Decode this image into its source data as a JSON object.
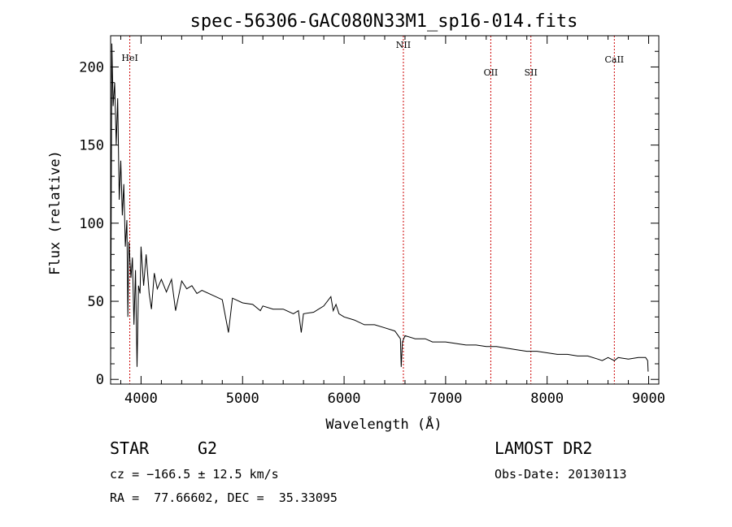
{
  "title": "spec-56306-GAC080N33M1_sp16-014.fits",
  "chart_data": {
    "type": "line",
    "title": "spec-56306-GAC080N33M1_sp16-014.fits",
    "xlabel": "Wavelength (Å)",
    "ylabel": "Flux (relative)",
    "xlim": [
      3700,
      9100
    ],
    "ylim": [
      -3,
      220
    ],
    "x_ticks": [
      4000,
      5000,
      6000,
      7000,
      8000,
      9000
    ],
    "y_ticks": [
      0,
      50,
      100,
      150,
      200
    ],
    "grid": false,
    "series": [
      {
        "color": "#000000",
        "points": [
          [
            3700,
            5
          ],
          [
            3712,
            215
          ],
          [
            3725,
            175
          ],
          [
            3740,
            190
          ],
          [
            3755,
            150
          ],
          [
            3770,
            180
          ],
          [
            3785,
            115
          ],
          [
            3800,
            140
          ],
          [
            3815,
            105
          ],
          [
            3830,
            125
          ],
          [
            3845,
            85
          ],
          [
            3860,
            102
          ],
          [
            3870,
            40
          ],
          [
            3880,
            88
          ],
          [
            3900,
            65
          ],
          [
            3915,
            78
          ],
          [
            3930,
            35
          ],
          [
            3945,
            70
          ],
          [
            3960,
            8
          ],
          [
            3975,
            60
          ],
          [
            3990,
            55
          ],
          [
            4000,
            85
          ],
          [
            4025,
            60
          ],
          [
            4050,
            80
          ],
          [
            4080,
            55
          ],
          [
            4102,
            45
          ],
          [
            4130,
            68
          ],
          [
            4160,
            58
          ],
          [
            4200,
            64
          ],
          [
            4250,
            56
          ],
          [
            4300,
            64
          ],
          [
            4340,
            44
          ],
          [
            4400,
            63
          ],
          [
            4450,
            58
          ],
          [
            4500,
            60
          ],
          [
            4550,
            55
          ],
          [
            4600,
            57
          ],
          [
            4700,
            54
          ],
          [
            4800,
            51
          ],
          [
            4861,
            30
          ],
          [
            4900,
            52
          ],
          [
            5000,
            49
          ],
          [
            5100,
            48
          ],
          [
            5175,
            44
          ],
          [
            5200,
            47
          ],
          [
            5300,
            45
          ],
          [
            5400,
            45
          ],
          [
            5500,
            42
          ],
          [
            5550,
            44
          ],
          [
            5578,
            30
          ],
          [
            5600,
            42
          ],
          [
            5700,
            43
          ],
          [
            5800,
            47
          ],
          [
            5870,
            53
          ],
          [
            5893,
            44
          ],
          [
            5920,
            48
          ],
          [
            5950,
            42
          ],
          [
            6000,
            40
          ],
          [
            6100,
            38
          ],
          [
            6200,
            35
          ],
          [
            6300,
            35
          ],
          [
            6400,
            33
          ],
          [
            6500,
            31
          ],
          [
            6555,
            26
          ],
          [
            6563,
            8
          ],
          [
            6575,
            24
          ],
          [
            6600,
            28
          ],
          [
            6700,
            26
          ],
          [
            6800,
            26
          ],
          [
            6870,
            24
          ],
          [
            7000,
            24
          ],
          [
            7100,
            23
          ],
          [
            7200,
            22
          ],
          [
            7300,
            22
          ],
          [
            7400,
            21
          ],
          [
            7500,
            21
          ],
          [
            7600,
            20
          ],
          [
            7700,
            19
          ],
          [
            7800,
            18
          ],
          [
            7900,
            18
          ],
          [
            8000,
            17
          ],
          [
            8100,
            16
          ],
          [
            8200,
            16
          ],
          [
            8300,
            15
          ],
          [
            8400,
            15
          ],
          [
            8498,
            13
          ],
          [
            8542,
            12
          ],
          [
            8600,
            14
          ],
          [
            8662,
            12
          ],
          [
            8700,
            14
          ],
          [
            8800,
            13
          ],
          [
            8900,
            14
          ],
          [
            8970,
            14
          ],
          [
            8990,
            12
          ],
          [
            8995,
            5
          ]
        ]
      }
    ],
    "spectral_lines": [
      {
        "label": "HeI",
        "x": 3889
      },
      {
        "label": "NII",
        "x": 6584
      },
      {
        "label": "OII",
        "x": 7445
      },
      {
        "label": "SII",
        "x": 7840
      },
      {
        "label": "CaII",
        "x": 8662
      }
    ],
    "line_color": "#cc0000"
  },
  "info": {
    "class_label": "STAR",
    "subclass_label": "G2",
    "cz_text": "cz = −166.5 ± 12.5 km/s",
    "radec_text": "RA =  77.66602, DEC =  35.33095",
    "survey_text": "LAMOST DR2",
    "obsdate_text": "Obs-Date: 20130113"
  }
}
